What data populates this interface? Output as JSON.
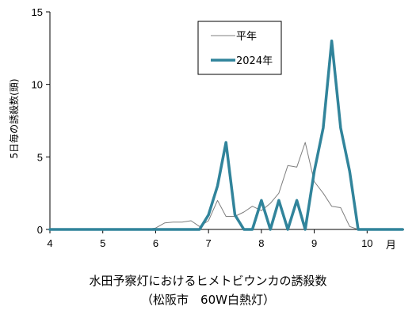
{
  "chart_data": {
    "type": "line",
    "ylabel": "5日毎の誘殺数(頭)",
    "xunit": "月",
    "ylim": [
      0,
      15
    ],
    "yticks": [
      0,
      5,
      10,
      15
    ],
    "xlim": [
      4,
      10.7
    ],
    "xticks": [
      4,
      5,
      6,
      7,
      8,
      9,
      10
    ],
    "grid": false,
    "legend_position": "top-center",
    "series": [
      {
        "name": "平年",
        "color": "#7f7f7f",
        "points": [
          [
            4.0,
            0
          ],
          [
            4.17,
            0
          ],
          [
            4.33,
            0
          ],
          [
            4.5,
            0
          ],
          [
            4.67,
            0
          ],
          [
            4.83,
            0
          ],
          [
            5.0,
            0
          ],
          [
            5.17,
            0
          ],
          [
            5.33,
            0
          ],
          [
            5.5,
            0
          ],
          [
            5.67,
            0
          ],
          [
            5.83,
            0
          ],
          [
            6.0,
            0.1
          ],
          [
            6.17,
            0.45
          ],
          [
            6.33,
            0.5
          ],
          [
            6.5,
            0.5
          ],
          [
            6.67,
            0.6
          ],
          [
            6.83,
            0.2
          ],
          [
            7.0,
            0.6
          ],
          [
            7.17,
            2.0
          ],
          [
            7.33,
            0.9
          ],
          [
            7.5,
            0.9
          ],
          [
            7.67,
            1.2
          ],
          [
            7.83,
            1.6
          ],
          [
            8.0,
            1.3
          ],
          [
            8.17,
            1.8
          ],
          [
            8.33,
            2.5
          ],
          [
            8.5,
            4.4
          ],
          [
            8.67,
            4.3
          ],
          [
            8.83,
            6.0
          ],
          [
            9.0,
            3.3
          ],
          [
            9.17,
            2.5
          ],
          [
            9.33,
            1.6
          ],
          [
            9.5,
            1.5
          ],
          [
            9.67,
            0.2
          ],
          [
            9.83,
            0.0
          ],
          [
            10.0,
            0
          ],
          [
            10.17,
            0
          ],
          [
            10.33,
            0
          ],
          [
            10.5,
            0
          ],
          [
            10.67,
            0
          ]
        ]
      },
      {
        "name": "2024年",
        "color": "#31849b",
        "points": [
          [
            4.0,
            0
          ],
          [
            4.17,
            0
          ],
          [
            4.33,
            0
          ],
          [
            4.5,
            0
          ],
          [
            4.67,
            0
          ],
          [
            4.83,
            0
          ],
          [
            5.0,
            0
          ],
          [
            5.17,
            0
          ],
          [
            5.33,
            0
          ],
          [
            5.5,
            0
          ],
          [
            5.67,
            0
          ],
          [
            5.83,
            0
          ],
          [
            6.0,
            0
          ],
          [
            6.17,
            0
          ],
          [
            6.33,
            0
          ],
          [
            6.5,
            0
          ],
          [
            6.67,
            0
          ],
          [
            6.83,
            0
          ],
          [
            7.0,
            1
          ],
          [
            7.17,
            3
          ],
          [
            7.33,
            6
          ],
          [
            7.5,
            1
          ],
          [
            7.67,
            0
          ],
          [
            7.83,
            0
          ],
          [
            8.0,
            2
          ],
          [
            8.17,
            0
          ],
          [
            8.33,
            2
          ],
          [
            8.5,
            0
          ],
          [
            8.67,
            2
          ],
          [
            8.83,
            0
          ],
          [
            9.0,
            4
          ],
          [
            9.17,
            7
          ],
          [
            9.33,
            13
          ],
          [
            9.5,
            7
          ],
          [
            9.67,
            4
          ],
          [
            9.83,
            0
          ],
          [
            10.0,
            0
          ],
          [
            10.17,
            0
          ],
          [
            10.33,
            0
          ],
          [
            10.5,
            0
          ],
          [
            10.67,
            0
          ]
        ]
      }
    ]
  },
  "caption": {
    "line1": "水田予察灯におけるヒメトビウンカの誘殺数",
    "line2": "（松阪市　60W白熱灯）"
  }
}
